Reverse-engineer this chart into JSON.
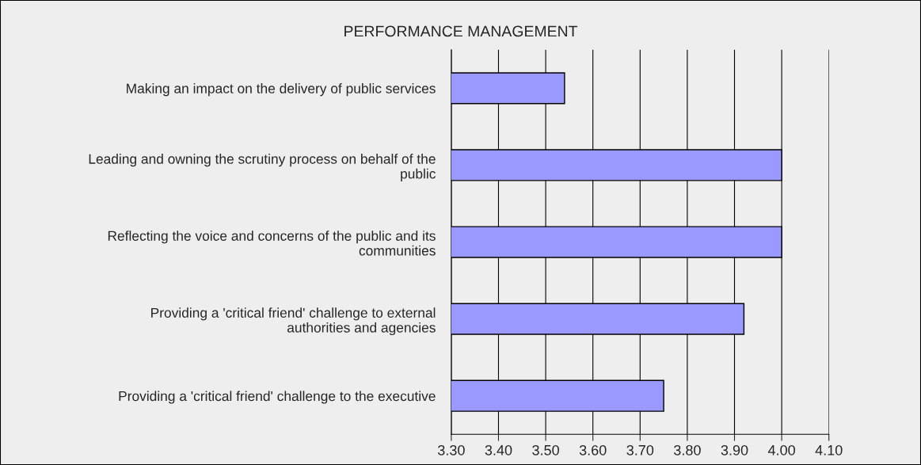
{
  "chart_data": {
    "type": "bar",
    "orientation": "horizontal",
    "title": "PERFORMANCE MANAGEMENT",
    "categories": [
      "Making an impact on the delivery of public services",
      "Leading and owning the scrutiny process on behalf of the public",
      "Reflecting the voice and concerns of the public and its communities",
      "Providing a 'critical friend' challenge to external authorities and agencies",
      "Providing a 'critical friend' challenge to the executive"
    ],
    "values": [
      3.54,
      4.0,
      4.0,
      3.92,
      3.75
    ],
    "color": "#9999ff",
    "xlim": [
      3.3,
      4.1
    ],
    "xticks": [
      {
        "value": 3.3,
        "label": "3.30"
      },
      {
        "value": 3.4,
        "label": "3.40"
      },
      {
        "value": 3.5,
        "label": "3.50"
      },
      {
        "value": 3.6,
        "label": "3.60"
      },
      {
        "value": 3.7,
        "label": "3.70"
      },
      {
        "value": 3.8,
        "label": "3.80"
      },
      {
        "value": 3.9,
        "label": "3.90"
      },
      {
        "value": 4.0,
        "label": "4.00"
      },
      {
        "value": 4.1,
        "label": "4.10"
      }
    ],
    "grid": "x",
    "legend": false
  }
}
